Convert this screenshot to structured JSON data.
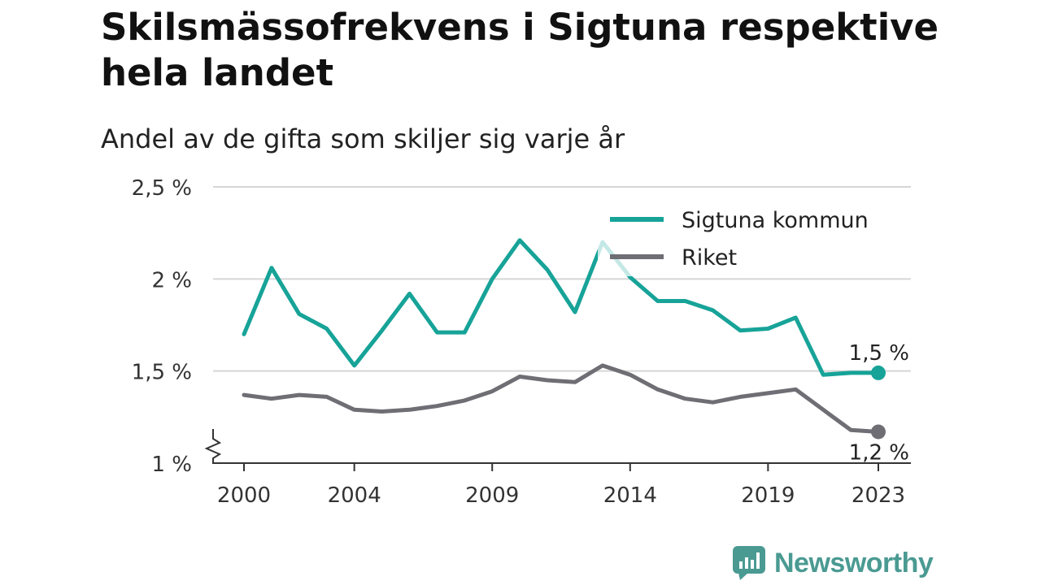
{
  "chart_data": {
    "type": "line",
    "title": "Skilsmässofrekvens i Sigtuna respektive hela landet",
    "subtitle": "Andel av de gifta som skiljer sig varje år",
    "x": [
      2000,
      2001,
      2002,
      2003,
      2004,
      2005,
      2006,
      2007,
      2008,
      2009,
      2010,
      2011,
      2012,
      2013,
      2014,
      2015,
      2016,
      2017,
      2018,
      2019,
      2020,
      2021,
      2022,
      2023
    ],
    "x_ticks": [
      2000,
      2004,
      2009,
      2014,
      2019,
      2023
    ],
    "y_ticks": [
      {
        "value": 1.0,
        "label": "1 %"
      },
      {
        "value": 1.5,
        "label": "1,5 %"
      },
      {
        "value": 2.0,
        "label": "2 %"
      },
      {
        "value": 2.5,
        "label": "2,5 %"
      }
    ],
    "ylim": [
      1.0,
      2.5
    ],
    "axis_break": true,
    "grid": true,
    "legend_position": "top-right",
    "series": [
      {
        "name": "Sigtuna kommun",
        "color": "#17a398",
        "values": [
          1.7,
          2.06,
          1.81,
          1.73,
          1.53,
          1.72,
          1.92,
          1.71,
          1.71,
          2.0,
          2.21,
          2.05,
          1.82,
          2.2,
          2.01,
          1.88,
          1.88,
          1.83,
          1.72,
          1.73,
          1.79,
          1.48,
          1.49,
          1.49
        ],
        "end_label": "1,5 %"
      },
      {
        "name": "Riket",
        "color": "#6e6e74",
        "values": [
          1.37,
          1.35,
          1.37,
          1.36,
          1.29,
          1.28,
          1.29,
          1.31,
          1.34,
          1.39,
          1.47,
          1.45,
          1.44,
          1.53,
          1.48,
          1.4,
          1.35,
          1.33,
          1.36,
          1.38,
          1.4,
          1.29,
          1.18,
          1.17
        ],
        "end_label": "1,2 %"
      }
    ]
  },
  "brand": {
    "name": "Newsworthy",
    "icon": "newsworthy-logo-icon",
    "color": "#4a9a92"
  }
}
